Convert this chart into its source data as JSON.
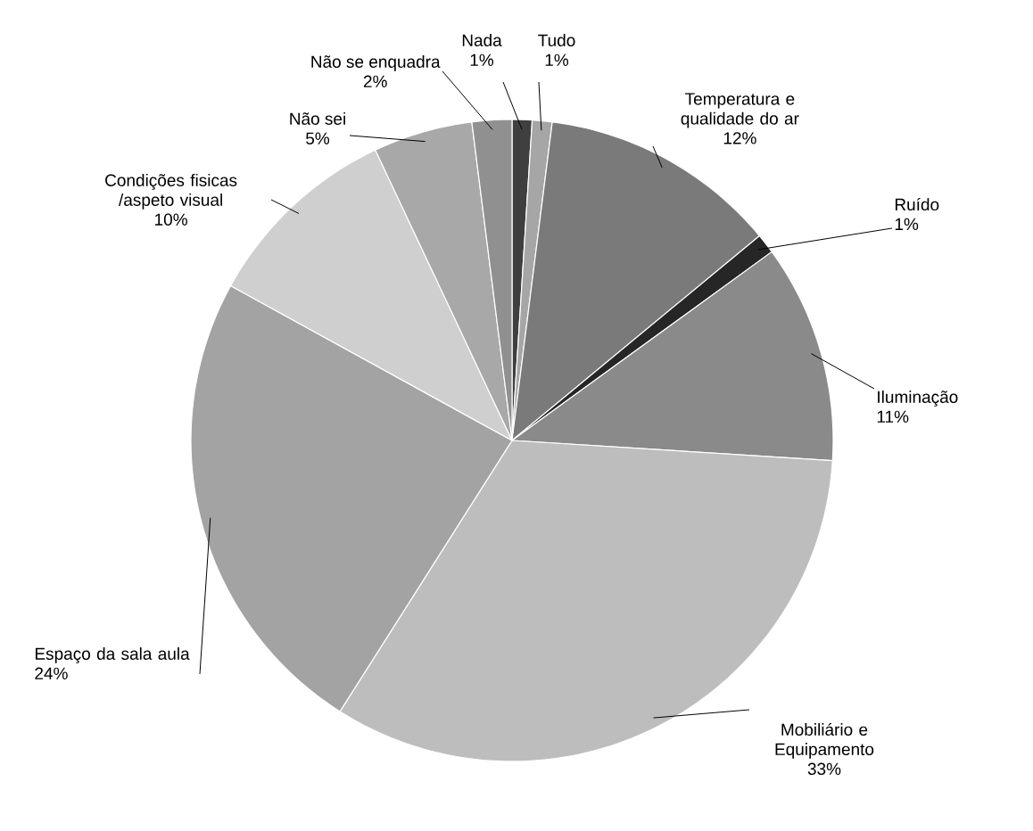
{
  "chart_data": {
    "type": "pie",
    "categories": [
      "Nada",
      "Tudo",
      "Temperatura e qualidade do ar",
      "Ruído",
      "Iluminação",
      "Mobiliário e Equipamento",
      "Espaço da sala aula",
      "Condições fisicas /aspeto visual",
      "Não sei",
      "Não se enquadra"
    ],
    "values": [
      1,
      1,
      12,
      1,
      11,
      33,
      24,
      10,
      5,
      2
    ],
    "value_labels": [
      "1%",
      "1%",
      "12%",
      "1%",
      "11%",
      "33%",
      "24%",
      "10%",
      "5%",
      "2%"
    ],
    "colors": [
      "#3f3f3f",
      "#a6a6a6",
      "#7a7a7a",
      "#262626",
      "#8a8a8a",
      "#bdbdbd",
      "#a3a3a3",
      "#cfcfcf",
      "#a8a8a8",
      "#909090"
    ]
  }
}
